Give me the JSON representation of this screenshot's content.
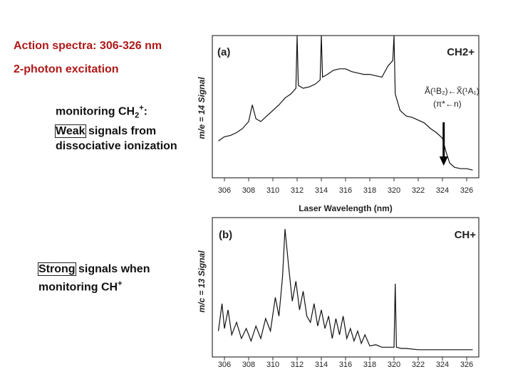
{
  "slide": {
    "title": "Action spectra: 306-326 nm",
    "subtitle": "2-photon excitation",
    "note1": {
      "prefix": "monitoring CH",
      "sub": "2",
      "sup": "+",
      "colon": ":",
      "boxed_word": "Weak",
      "rest": " signals from dissociative ionization"
    },
    "note2": {
      "boxed_word": "Strong",
      "rest": " signals when monitoring CH",
      "sup": "+"
    }
  },
  "chart_data": [
    {
      "type": "line",
      "panel_label": "(a)",
      "species_label": "CH2+",
      "ylabel": "m/e = 14 Signal",
      "xlabel": "Laser Wavelength (nm)",
      "xlim": [
        305,
        327
      ],
      "xticks": [
        "306",
        "308",
        "310",
        "312",
        "314",
        "316",
        "318",
        "320",
        "322",
        "324",
        "326"
      ],
      "annotation": {
        "transition": "Ã(¹B₂)←X̃(¹A₁)",
        "assignment": "(π*←n)",
        "arrow_at": 324.1
      },
      "series": [
        {
          "x": [
            305.5,
            306,
            306.5,
            307,
            307.5,
            308,
            308.3,
            308.6,
            309,
            309.5,
            310,
            310.5,
            311,
            311.5,
            311.9,
            312.0,
            312.1,
            312.5,
            313,
            313.5,
            313.9,
            314.0,
            314.1,
            314.5,
            315,
            315.5,
            316,
            316.5,
            317,
            317.5,
            318,
            318.5,
            319,
            319.5,
            319.9,
            320.0,
            320.1,
            320.5,
            321,
            321.5,
            322,
            322.5,
            323,
            323.5,
            324,
            324.3,
            324.6,
            325,
            325.5,
            326,
            326.5
          ],
          "y": [
            0.24,
            0.27,
            0.28,
            0.3,
            0.33,
            0.38,
            0.5,
            0.4,
            0.38,
            0.42,
            0.46,
            0.5,
            0.55,
            0.58,
            0.62,
            1.0,
            0.64,
            0.62,
            0.63,
            0.65,
            0.68,
            1.0,
            0.7,
            0.72,
            0.75,
            0.76,
            0.76,
            0.74,
            0.73,
            0.72,
            0.72,
            0.71,
            0.7,
            0.78,
            0.82,
            1.0,
            0.58,
            0.46,
            0.42,
            0.41,
            0.39,
            0.37,
            0.33,
            0.3,
            0.26,
            0.16,
            0.08,
            0.05,
            0.04,
            0.04,
            0.03
          ]
        }
      ]
    },
    {
      "type": "line",
      "panel_label": "(b)",
      "species_label": "CH+",
      "ylabel": "m/c = 13 Signal",
      "xlim": [
        305,
        327
      ],
      "xticks": [
        "306",
        "308",
        "310",
        "312",
        "314",
        "316",
        "318",
        "320",
        "322",
        "324",
        "326"
      ],
      "series": [
        {
          "x": [
            305.5,
            305.8,
            306,
            306.3,
            306.6,
            307,
            307.4,
            307.8,
            308.2,
            308.6,
            309,
            309.4,
            309.8,
            310.2,
            310.5,
            310.8,
            311.0,
            311.3,
            311.6,
            311.9,
            312.2,
            312.5,
            312.8,
            313.1,
            313.4,
            313.7,
            314.0,
            314.3,
            314.6,
            314.9,
            315.2,
            315.5,
            315.8,
            316.1,
            316.4,
            316.7,
            317.0,
            317.3,
            317.6,
            318,
            318.5,
            319,
            319.5,
            320.0,
            320.1,
            320.2,
            320.6,
            321,
            322,
            323,
            324,
            325,
            326,
            326.5
          ],
          "y": [
            0.18,
            0.4,
            0.2,
            0.35,
            0.15,
            0.25,
            0.12,
            0.2,
            0.1,
            0.22,
            0.12,
            0.28,
            0.18,
            0.45,
            0.3,
            0.62,
            1.0,
            0.7,
            0.42,
            0.58,
            0.35,
            0.5,
            0.3,
            0.25,
            0.4,
            0.22,
            0.35,
            0.2,
            0.3,
            0.12,
            0.28,
            0.15,
            0.3,
            0.12,
            0.2,
            0.1,
            0.18,
            0.08,
            0.15,
            0.06,
            0.07,
            0.05,
            0.05,
            0.05,
            0.56,
            0.05,
            0.04,
            0.04,
            0.03,
            0.03,
            0.03,
            0.03,
            0.03,
            0.03
          ]
        }
      ]
    }
  ]
}
